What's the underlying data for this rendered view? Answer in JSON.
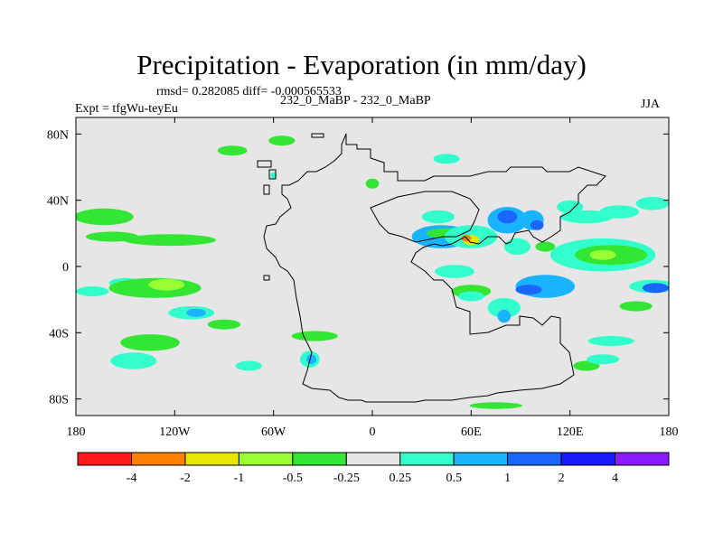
{
  "chart_data": {
    "type": "heatmap",
    "title": "Precipitation - Evaporation (in mm/day)",
    "stats_line": "rmsd= 0.282085 diff= -0.000565533",
    "experiment": "Expt = tfgWu-teyEu",
    "subtitle": "232_0_MaBP - 232_0_MaBP",
    "season": "JJA",
    "x_axis": {
      "range": [
        -180,
        180
      ],
      "ticks": [
        {
          "value": -180,
          "label": "180"
        },
        {
          "value": -120,
          "label": "120W"
        },
        {
          "value": -60,
          "label": "60W"
        },
        {
          "value": 0,
          "label": "0"
        },
        {
          "value": 60,
          "label": "60E"
        },
        {
          "value": 120,
          "label": "120E"
        },
        {
          "value": 180,
          "label": "180"
        }
      ]
    },
    "y_axis": {
      "range": [
        -90,
        90
      ],
      "ticks": [
        {
          "value": 80,
          "label": "80N"
        },
        {
          "value": 40,
          "label": "40N"
        },
        {
          "value": 0,
          "label": "0"
        },
        {
          "value": -40,
          "label": "40S"
        },
        {
          "value": -80,
          "label": "80S"
        }
      ]
    },
    "colorbar": {
      "colors": [
        "#ff1a1a",
        "#ff8000",
        "#e6e600",
        "#99ff33",
        "#33e633",
        "#e6e6e6",
        "#33ffcc",
        "#1ab3ff",
        "#1a66ff",
        "#1a1aff",
        "#8c1aff"
      ],
      "labels": [
        "-4",
        "-2",
        "-1",
        "-0.5",
        "-0.25",
        "0.25",
        "0.5",
        "1",
        "2",
        "4"
      ]
    },
    "background_color": "#e6e6e6",
    "anomaly_patches": [
      {
        "lon": -163,
        "lat": 30,
        "rlon": 18,
        "rlat": 5,
        "level": 4
      },
      {
        "lon": -158,
        "lat": 18,
        "rlon": 16,
        "rlat": 3,
        "level": 4
      },
      {
        "lon": -123,
        "lat": 16,
        "rlon": 28,
        "rlat": 3.5,
        "level": 4
      },
      {
        "lon": -150,
        "lat": -10,
        "rlon": 10,
        "rlat": 3,
        "level": 6
      },
      {
        "lon": -170,
        "lat": -15,
        "rlon": 10,
        "rlat": 3,
        "level": 6
      },
      {
        "lon": -132,
        "lat": -13,
        "rlon": 28,
        "rlat": 6,
        "level": 4
      },
      {
        "lon": -125,
        "lat": -11,
        "rlon": 11,
        "rlat": 3.5,
        "level": 3
      },
      {
        "lon": -110,
        "lat": -28,
        "rlon": 14,
        "rlat": 4,
        "level": 6
      },
      {
        "lon": -107,
        "lat": -28,
        "rlon": 6,
        "rlat": 2.5,
        "level": 7
      },
      {
        "lon": -135,
        "lat": -46,
        "rlon": 18,
        "rlat": 5,
        "level": 4
      },
      {
        "lon": -145,
        "lat": -57,
        "rlon": 14,
        "rlat": 5,
        "level": 6
      },
      {
        "lon": -90,
        "lat": -35,
        "rlon": 10,
        "rlat": 3,
        "level": 4
      },
      {
        "lon": -38,
        "lat": -56,
        "rlon": 6,
        "rlat": 5,
        "level": 6
      },
      {
        "lon": -37,
        "lat": -56,
        "rlon": 3,
        "rlat": 3,
        "level": 7
      },
      {
        "lon": -75,
        "lat": -60,
        "rlon": 8,
        "rlat": 3,
        "level": 6
      },
      {
        "lon": -35,
        "lat": -42,
        "rlon": 14,
        "rlat": 3,
        "level": 4
      },
      {
        "lon": -85,
        "lat": 70,
        "rlon": 9,
        "rlat": 3,
        "level": 4
      },
      {
        "lon": -55,
        "lat": 76,
        "rlon": 8,
        "rlat": 3,
        "level": 4
      },
      {
        "lon": -60,
        "lat": 55,
        "rlon": 2,
        "rlat": 2,
        "level": 6
      },
      {
        "lon": 40,
        "lat": 30,
        "rlon": 10,
        "rlat": 4,
        "level": 6
      },
      {
        "lon": 42,
        "lat": 18,
        "rlon": 18,
        "rlat": 7,
        "level": 7
      },
      {
        "lon": 45,
        "lat": 20,
        "rlon": 12,
        "rlat": 3,
        "level": 4
      },
      {
        "lon": 60,
        "lat": 18,
        "rlon": 16,
        "rlat": 7,
        "level": 6
      },
      {
        "lon": 60,
        "lat": 16,
        "rlon": 5,
        "rlat": 3,
        "level": 2
      },
      {
        "lon": 57,
        "lat": 17,
        "rlon": 3,
        "rlat": 2,
        "level": 1
      },
      {
        "lon": 82,
        "lat": 28,
        "rlon": 12,
        "rlat": 8,
        "level": 7
      },
      {
        "lon": 82,
        "lat": 30,
        "rlon": 6,
        "rlat": 4,
        "level": 8
      },
      {
        "lon": 97,
        "lat": 28,
        "rlon": 7,
        "rlat": 6,
        "level": 7
      },
      {
        "lon": 100,
        "lat": 25,
        "rlon": 4,
        "rlat": 3,
        "level": 8
      },
      {
        "lon": 88,
        "lat": 12,
        "rlon": 8,
        "rlat": 5,
        "level": 6
      },
      {
        "lon": 105,
        "lat": 12,
        "rlon": 6,
        "rlat": 3,
        "level": 4
      },
      {
        "lon": 120,
        "lat": 36,
        "rlon": 8,
        "rlat": 4,
        "level": 6
      },
      {
        "lon": 130,
        "lat": 30,
        "rlon": 16,
        "rlat": 4,
        "level": 6
      },
      {
        "lon": 150,
        "lat": 33,
        "rlon": 12,
        "rlat": 4,
        "level": 6
      },
      {
        "lon": 140,
        "lat": 7,
        "rlon": 32,
        "rlat": 10,
        "level": 6
      },
      {
        "lon": 145,
        "lat": 7,
        "rlon": 22,
        "rlat": 6,
        "level": 4
      },
      {
        "lon": 140,
        "lat": 7,
        "rlon": 8,
        "rlat": 3,
        "level": 3
      },
      {
        "lon": 50,
        "lat": -3,
        "rlon": 12,
        "rlat": 4,
        "level": 6
      },
      {
        "lon": 60,
        "lat": -15,
        "rlon": 12,
        "rlat": 4,
        "level": 4
      },
      {
        "lon": 60,
        "lat": -18,
        "rlon": 8,
        "rlat": 3,
        "level": 6
      },
      {
        "lon": 80,
        "lat": -25,
        "rlon": 10,
        "rlat": 6,
        "level": 6
      },
      {
        "lon": 80,
        "lat": -30,
        "rlon": 4,
        "rlat": 4,
        "level": 7
      },
      {
        "lon": 105,
        "lat": -12,
        "rlon": 18,
        "rlat": 7,
        "level": 7
      },
      {
        "lon": 95,
        "lat": -14,
        "rlon": 8,
        "rlat": 3,
        "level": 8
      },
      {
        "lon": 170,
        "lat": -12,
        "rlon": 14,
        "rlat": 4,
        "level": 6
      },
      {
        "lon": 172,
        "lat": -13,
        "rlon": 8,
        "rlat": 3,
        "level": 8
      },
      {
        "lon": 160,
        "lat": -24,
        "rlon": 10,
        "rlat": 3,
        "level": 4
      },
      {
        "lon": 145,
        "lat": -45,
        "rlon": 14,
        "rlat": 3,
        "level": 6
      },
      {
        "lon": 130,
        "lat": -60,
        "rlon": 8,
        "rlat": 3,
        "level": 4
      },
      {
        "lon": 140,
        "lat": -56,
        "rlon": 10,
        "rlat": 3,
        "level": 6
      },
      {
        "lon": 75,
        "lat": -84,
        "rlon": 16,
        "rlat": 2,
        "level": 4
      },
      {
        "lon": 0,
        "lat": 50,
        "rlon": 4,
        "rlat": 3,
        "level": 4
      },
      {
        "lon": 45,
        "lat": 65,
        "rlon": 8,
        "rlat": 3,
        "level": 6
      },
      {
        "lon": 170,
        "lat": 38,
        "rlon": 10,
        "rlat": 4,
        "level": 6
      }
    ]
  }
}
